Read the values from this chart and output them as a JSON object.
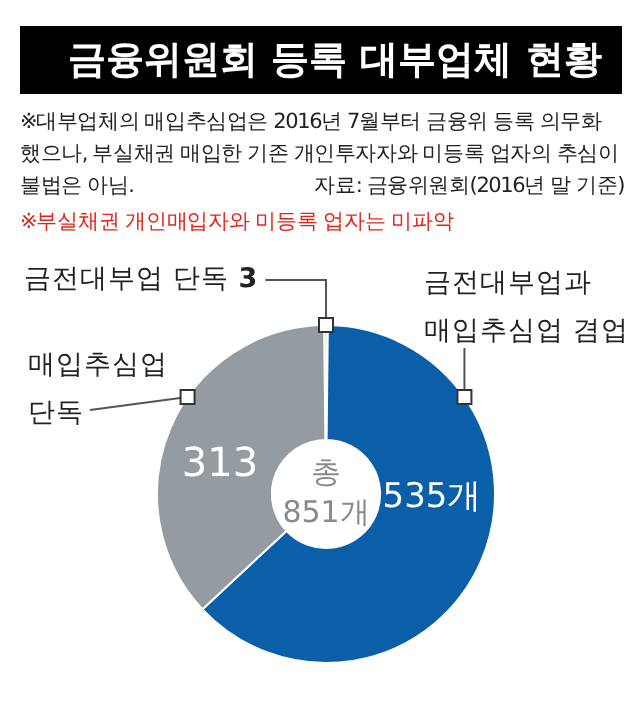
{
  "chart_data": {
    "type": "donut",
    "title": "금융위원회 등록 대부업체 현황",
    "subtitle": "※대부업체의 매입추심업은 2016년 7월부터 금융위 등록 의무화 했으나, 부실채권 매입한 기존 개인투자자와 미등록 업자의 추심이 불법은 아님.",
    "annotations": [
      "자료: 금융위원회(2016년 말 기준)",
      "※부실채권 개인매입자와 미등록 업자는 미파악",
      "총 851개"
    ],
    "categories": [
      "금전대부업 단독",
      "금전대부업과 매입추심업 겸업",
      "매입추심업 단독"
    ],
    "values": [
      3,
      535,
      313
    ],
    "colors": [
      "#dfe3e6",
      "#0a5fa8",
      "#949ca1"
    ],
    "value_labels": [
      "3",
      "535개",
      "313"
    ],
    "legend": false
  }
}
